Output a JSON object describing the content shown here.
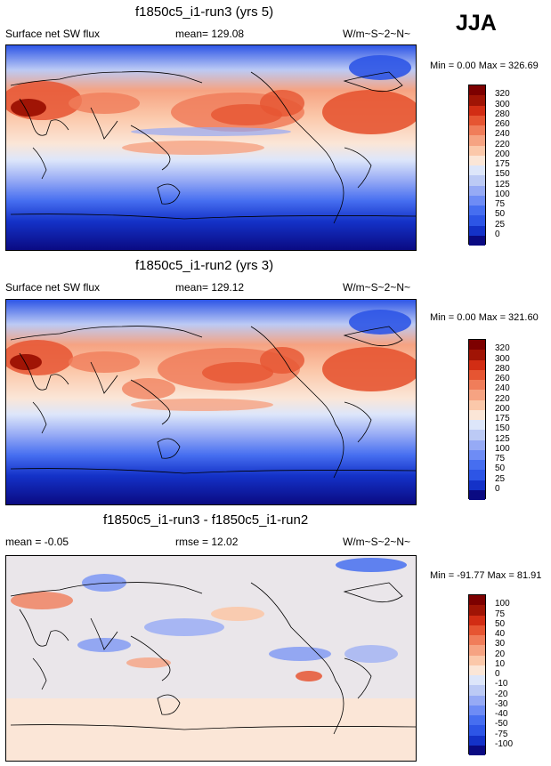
{
  "season": "JJA",
  "panels": [
    {
      "title": "f1850c5_i1-run3 (yrs 5)",
      "left_label": "Surface net SW flux",
      "center_label": "mean= 129.08",
      "units": "W/m~S~2~N~",
      "minmax": "Min =   0.00 Max = 326.69"
    },
    {
      "title": "f1850c5_i1-run2 (yrs 3)",
      "left_label": "Surface net SW flux",
      "center_label": "mean= 129.12",
      "units": "W/m~S~2~N~",
      "minmax": "Min =   0.00 Max = 321.60"
    },
    {
      "title": "f1850c5_i1-run3 - f1850c5_i1-run2",
      "left_label": "mean =  -0.05",
      "center_label": "rmse =  12.02",
      "units": "W/m~S~2~N~",
      "minmax": "Min = -91.77 Max =  81.91"
    }
  ],
  "chart_data": [
    {
      "type": "heatmap",
      "title": "f1850c5_i1-run3 (yrs 5)",
      "variable": "Surface net SW flux",
      "mean": 129.08,
      "min": 0.0,
      "max": 326.69,
      "units": "W/m~S~2~N~",
      "levels": [
        0,
        25,
        50,
        75,
        100,
        125,
        150,
        175,
        200,
        220,
        240,
        260,
        280,
        300,
        320
      ],
      "colors": [
        "#0a0a82",
        "#1432c8",
        "#2d55e6",
        "#466ef0",
        "#6e8cf5",
        "#96aaf5",
        "#bccaf5",
        "#dde6fa",
        "#fbe6d7",
        "#fbc8aa",
        "#f6a382",
        "#f07d5a",
        "#e65532",
        "#d22d14",
        "#a01405",
        "#7d0000"
      ]
    },
    {
      "type": "heatmap",
      "title": "f1850c5_i1-run2 (yrs 3)",
      "variable": "Surface net SW flux",
      "mean": 129.12,
      "min": 0.0,
      "max": 321.6,
      "units": "W/m~S~2~N~",
      "levels": [
        0,
        25,
        50,
        75,
        100,
        125,
        150,
        175,
        200,
        220,
        240,
        260,
        280,
        300,
        320
      ],
      "colors": [
        "#0a0a82",
        "#1432c8",
        "#2d55e6",
        "#466ef0",
        "#6e8cf5",
        "#96aaf5",
        "#bccaf5",
        "#dde6fa",
        "#fbe6d7",
        "#fbc8aa",
        "#f6a382",
        "#f07d5a",
        "#e65532",
        "#d22d14",
        "#a01405",
        "#7d0000"
      ]
    },
    {
      "type": "heatmap",
      "title": "f1850c5_i1-run3 - f1850c5_i1-run2",
      "mean": -0.05,
      "rmse": 12.02,
      "min": -91.77,
      "max": 81.91,
      "units": "W/m~S~2~N~",
      "levels": [
        -100,
        -75,
        -50,
        -40,
        -30,
        -20,
        -10,
        0,
        10,
        20,
        30,
        40,
        50,
        75,
        100
      ],
      "colors": [
        "#0a0a82",
        "#1432c8",
        "#2d55e6",
        "#466ef0",
        "#6e8cf5",
        "#96aaf5",
        "#bccaf5",
        "#dde6fa",
        "#fbe6d7",
        "#fbc8aa",
        "#f6a382",
        "#f07d5a",
        "#e65532",
        "#d22d14",
        "#a01405",
        "#7d0000"
      ]
    }
  ]
}
